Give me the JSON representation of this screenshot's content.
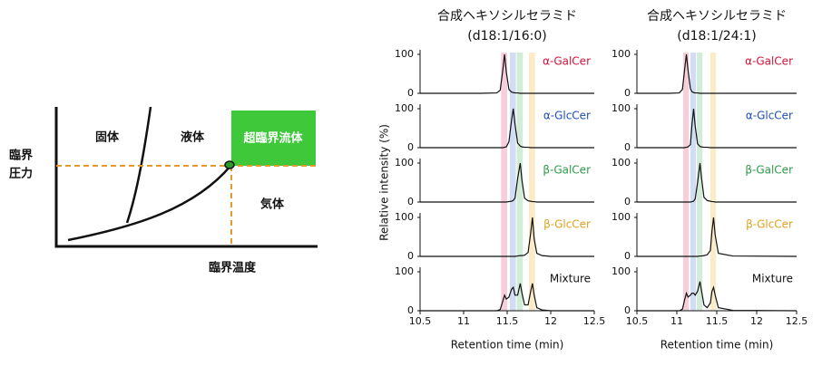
{
  "phase_diagram": {
    "solid": "固体",
    "liquid": "液体",
    "supercritical": "超臨界流体",
    "gas": "気体",
    "critical_pressure": [
      "臨界",
      "圧力"
    ],
    "critical_temperature": "臨界温度"
  },
  "chart_data": [
    {
      "type": "line",
      "title": "合成ヘキソシルセラミド",
      "subtitle": "(d18:1/16:0)",
      "xlabel": "Retention time (min)",
      "ylabel": "Relative intensity (%)",
      "xlim": [
        10.5,
        12.5
      ],
      "xticks": [
        10.5,
        11,
        11.5,
        12,
        12.5
      ],
      "ylim": [
        0,
        100
      ],
      "yticks": [
        0,
        100
      ],
      "line_color": "#111111",
      "highlights": [
        {
          "range": [
            11.43,
            11.5
          ],
          "color": "#f6c6d2"
        },
        {
          "range": [
            11.53,
            11.6
          ],
          "color": "#c9d6f3"
        },
        {
          "range": [
            11.61,
            11.68
          ],
          "color": "#cbe9d2"
        },
        {
          "range": [
            11.75,
            11.82
          ],
          "color": "#fbe7bd"
        }
      ],
      "x": [
        10.5,
        11.2,
        11.38,
        11.42,
        11.45,
        11.47,
        11.49,
        11.52,
        11.55,
        11.57,
        11.59,
        11.62,
        11.65,
        11.67,
        11.7,
        11.74,
        11.77,
        11.79,
        11.81,
        11.84,
        11.9,
        12.0,
        12.5
      ],
      "series": [
        {
          "name": "α-GalCer",
          "color": "#d2143a",
          "values": [
            0,
            0,
            1,
            8,
            60,
            100,
            55,
            10,
            3,
            2,
            1,
            1,
            0,
            0,
            0,
            0,
            0,
            0,
            0,
            0,
            0,
            0,
            0
          ]
        },
        {
          "name": "α-GlcCer",
          "color": "#1f4fb5",
          "values": [
            0,
            0,
            0,
            0,
            0,
            1,
            2,
            15,
            70,
            100,
            60,
            12,
            4,
            2,
            1,
            1,
            0,
            0,
            0,
            0,
            0,
            0,
            0
          ]
        },
        {
          "name": "β-GalCer",
          "color": "#2e9a4a",
          "values": [
            0,
            0,
            0,
            0,
            0,
            0,
            0,
            1,
            2,
            4,
            10,
            60,
            100,
            55,
            10,
            3,
            2,
            1,
            1,
            0,
            0,
            0,
            0
          ]
        },
        {
          "name": "β-GlcCer",
          "color": "#e0a020",
          "values": [
            0,
            0,
            0,
            0,
            0,
            0,
            0,
            0,
            0,
            0,
            0,
            1,
            2,
            2,
            3,
            10,
            60,
            100,
            45,
            8,
            2,
            0,
            0
          ]
        },
        {
          "name": "Mixture",
          "color": "#111111",
          "values": [
            0,
            0,
            0,
            3,
            25,
            40,
            30,
            35,
            55,
            60,
            40,
            40,
            70,
            45,
            15,
            15,
            50,
            70,
            40,
            8,
            2,
            0,
            0
          ]
        }
      ]
    },
    {
      "type": "line",
      "title": "合成ヘキソシルセラミド",
      "subtitle": "(d18:1/24:1)",
      "xlabel": "Retention time (min)",
      "xlim": [
        10.5,
        12.5
      ],
      "xticks": [
        10.5,
        11,
        11.5,
        12,
        12.5
      ],
      "ylim": [
        0,
        100
      ],
      "yticks": [
        0,
        100
      ],
      "line_color": "#111111",
      "highlights": [
        {
          "range": [
            11.08,
            11.15
          ],
          "color": "#f6c6d2"
        },
        {
          "range": [
            11.17,
            11.24
          ],
          "color": "#c9d6f3"
        },
        {
          "range": [
            11.25,
            11.32
          ],
          "color": "#cbe9d2"
        },
        {
          "range": [
            11.42,
            11.49
          ],
          "color": "#fbe7bd"
        }
      ],
      "x": [
        10.5,
        10.9,
        11.03,
        11.07,
        11.1,
        11.12,
        11.14,
        11.17,
        11.19,
        11.21,
        11.23,
        11.26,
        11.29,
        11.31,
        11.34,
        11.38,
        11.42,
        11.44,
        11.46,
        11.48,
        11.52,
        11.7,
        12.5
      ],
      "series": [
        {
          "name": "α-GalCer",
          "color": "#d2143a",
          "values": [
            0,
            0,
            1,
            10,
            65,
            100,
            60,
            12,
            4,
            2,
            1,
            1,
            0,
            0,
            0,
            0,
            0,
            0,
            0,
            0,
            0,
            0,
            0
          ]
        },
        {
          "name": "α-GlcCer",
          "color": "#1f4fb5",
          "values": [
            0,
            0,
            0,
            0,
            0,
            1,
            2,
            8,
            60,
            100,
            55,
            10,
            3,
            2,
            1,
            1,
            0,
            0,
            0,
            0,
            0,
            0,
            0
          ]
        },
        {
          "name": "β-GalCer",
          "color": "#2e9a4a",
          "values": [
            0,
            0,
            0,
            0,
            0,
            0,
            0,
            0,
            1,
            2,
            8,
            50,
            100,
            60,
            12,
            4,
            2,
            1,
            1,
            0,
            0,
            0,
            0
          ]
        },
        {
          "name": "β-GlcCer",
          "color": "#e0a020",
          "values": [
            0,
            0,
            0,
            0,
            0,
            0,
            0,
            0,
            0,
            0,
            0,
            0,
            1,
            1,
            2,
            4,
            15,
            65,
            100,
            55,
            8,
            1,
            0
          ]
        },
        {
          "name": "Mixture",
          "color": "#111111",
          "values": [
            0,
            0,
            0,
            4,
            30,
            45,
            35,
            40,
            45,
            45,
            40,
            50,
            75,
            50,
            15,
            8,
            20,
            50,
            60,
            40,
            8,
            1,
            0
          ]
        }
      ]
    }
  ]
}
